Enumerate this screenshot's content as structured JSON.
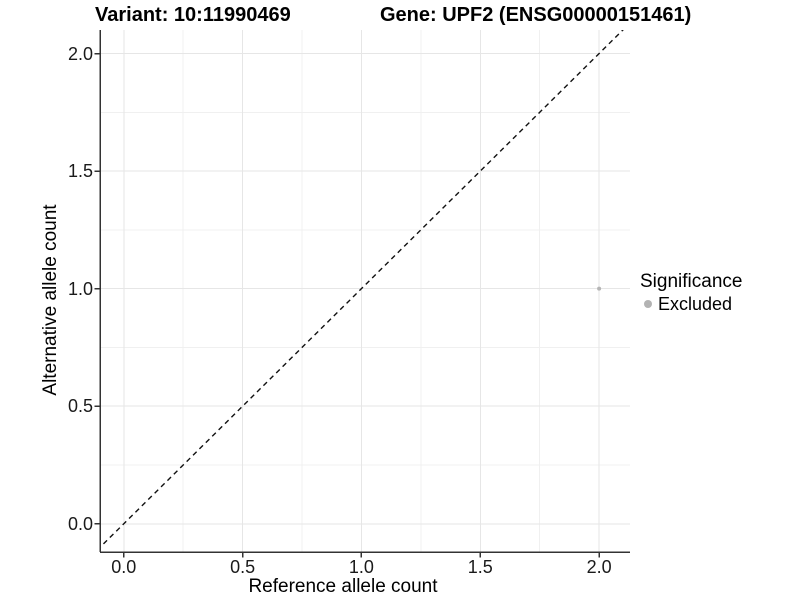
{
  "chart_data": {
    "type": "scatter",
    "titles": {
      "left": "Variant: 10:11990469",
      "right": "Gene: UPF2 (ENSG00000151461)"
    },
    "xlabel": "Reference allele count",
    "ylabel": "Alternative allele count",
    "x_ticks": [
      0.0,
      0.5,
      1.0,
      1.5,
      2.0
    ],
    "x_tick_labels": [
      "0.0",
      "0.5",
      "1.0",
      "1.5",
      "2.0"
    ],
    "y_ticks": [
      0.0,
      0.5,
      1.0,
      1.5,
      2.0
    ],
    "y_tick_labels": [
      "0.0",
      "0.5",
      "1.0",
      "1.5",
      "2.0"
    ],
    "xlim": [
      -0.1,
      2.13
    ],
    "ylim": [
      -0.12,
      2.1
    ],
    "grid": {
      "major": true,
      "minor": true
    },
    "reference_line": {
      "type": "identity",
      "style": "dashed"
    },
    "series": [
      {
        "name": "Excluded",
        "color": "#b5b5b5",
        "points": [
          {
            "x": 2.0,
            "y": 1.0
          }
        ]
      }
    ],
    "legend": {
      "title": "Significance",
      "position": "right",
      "items": [
        {
          "label": "Excluded",
          "color": "#b3b3b3",
          "marker": "circle"
        }
      ]
    },
    "style": {
      "grid_major_color": "#e6e6e6",
      "grid_minor_color": "#f0f0f0",
      "axis_color": "#333333",
      "identity_line_color": "#111111",
      "point_radius": 2,
      "text_color": "#000000"
    }
  }
}
